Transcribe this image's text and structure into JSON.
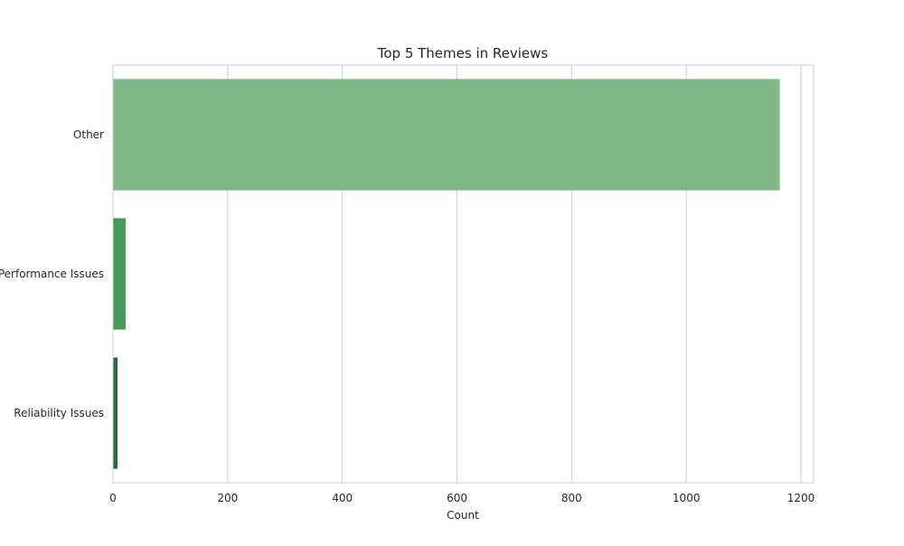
{
  "chart_data": {
    "type": "bar",
    "orientation": "horizontal",
    "title": "Top 5 Themes in Reviews",
    "xlabel": "Count",
    "ylabel": "",
    "categories": [
      "Other",
      "Performance Issues",
      "Reliability Issues"
    ],
    "values": [
      1163,
      22,
      8
    ],
    "colors": [
      "#7fb886",
      "#449a5b",
      "#2d6a41"
    ],
    "xlim": [
      0,
      1222
    ],
    "xticks": [
      0,
      200,
      400,
      600,
      800,
      1000,
      1200
    ],
    "grid": "vertical",
    "legend": "none"
  }
}
